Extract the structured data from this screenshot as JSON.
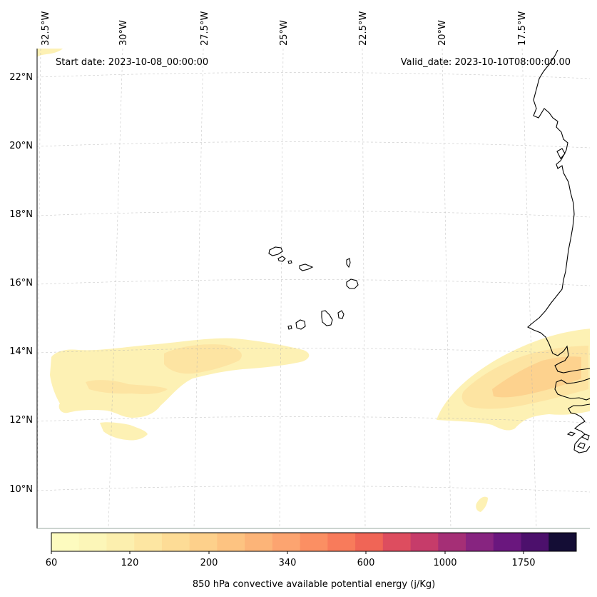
{
  "map": {
    "start_date_label": "Start date: 2023-10-08_00:00:00",
    "valid_date_label": "Valid_date: 2023-10-10T08:00:00.00",
    "longitude_labels": [
      "32.5°W",
      "30°W",
      "27.5°W",
      "25°W",
      "22.5°W",
      "20°W",
      "17.5°W"
    ],
    "latitude_labels": [
      "22°N",
      "20°N",
      "18°N",
      "16°N",
      "14°N",
      "12°N",
      "10°N"
    ],
    "colorbar_title": "850 hPa convective available potential energy (j/Kg)",
    "colorbar_ticks": [
      "60",
      "120",
      "200",
      "340",
      "600",
      "1000",
      "1750"
    ],
    "colorbar_colors": [
      "#fdfbbf",
      "#fcf6b8",
      "#fcefae",
      "#fde6a2",
      "#fddc96",
      "#fdd08b",
      "#fdc381",
      "#fcb478",
      "#fca470",
      "#fb8f63",
      "#f87b5b",
      "#f06556",
      "#dd4d5f",
      "#c63c6a",
      "#a52f76",
      "#872480",
      "#6a177e",
      "#4c106c",
      "#140d35"
    ],
    "field_colors": {
      "low": "#fdf0b0",
      "mid": "#fde2a0",
      "high": "#fdcf8c"
    }
  }
}
